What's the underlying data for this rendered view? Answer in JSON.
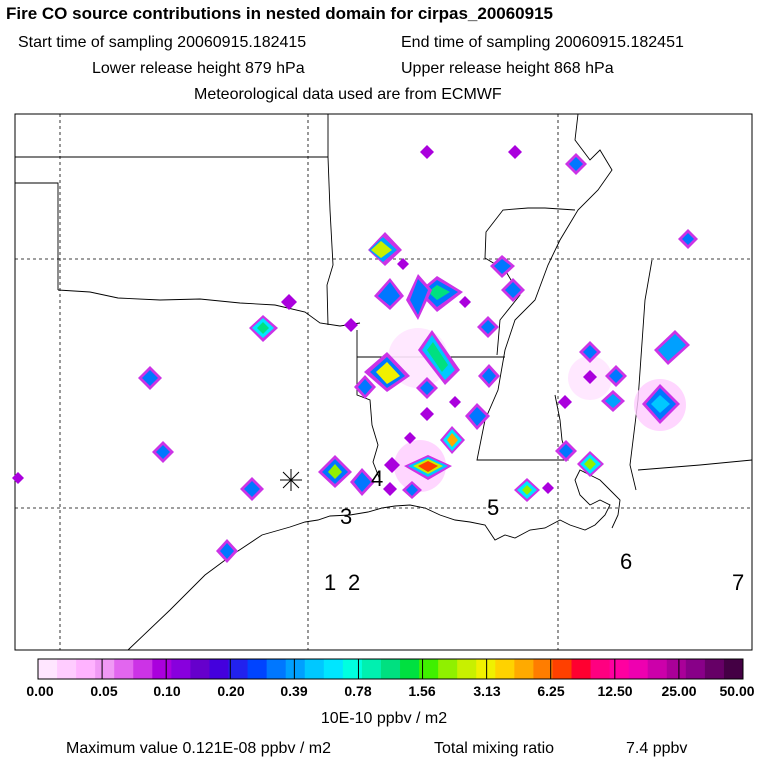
{
  "header": {
    "title": "Fire CO source contributions in nested domain for cirpas_20060915",
    "start_label": "Start time of sampling 20060915.182415",
    "end_label": "End time of sampling 20060915.182451",
    "lower_label": "Lower release height  879 hPa",
    "upper_label": "Upper release height  868 hPa",
    "met_label": "Meteorological data used are from ECMWF"
  },
  "map": {
    "site_labels": [
      "1",
      "2",
      "3",
      "4",
      "5",
      "6",
      "7"
    ],
    "release_marker": "release-asterisk"
  },
  "colorbar": {
    "colors": [
      "#ffe6ff",
      "#ffccff",
      "#ffb3ff",
      "#f099f5",
      "#e266ef",
      "#cc33e6",
      "#aa00dd",
      "#8800dd",
      "#6600cc",
      "#4400dd",
      "#2222ee",
      "#0044ff",
      "#0077ff",
      "#00a0ff",
      "#00c8ff",
      "#00e6ff",
      "#00ffe0",
      "#00f0b0",
      "#00e080",
      "#00e040",
      "#40f000",
      "#90f000",
      "#c8f000",
      "#f0f000",
      "#ffd200",
      "#ffaa00",
      "#ff7d00",
      "#ff4000",
      "#ff0030",
      "#ff0080",
      "#ff00a0",
      "#ee00b0",
      "#cc00aa",
      "#aa0099",
      "#880088",
      "#660066",
      "#440044"
    ],
    "tick_labels": [
      "0.00",
      "0.05",
      "0.10",
      "0.20",
      "0.39",
      "0.78",
      "1.56",
      "3.13",
      "6.25",
      "12.50",
      "25.00",
      "50.00"
    ],
    "unit_label": "10E-10 ppbv / m2"
  },
  "footer": {
    "max_value_label": "Maximum value  0.121E-08 ppbv / m2",
    "total_label": "Total mixing ratio",
    "total_value": "7.4 ppbv"
  },
  "chart_data": {
    "type": "heatmap",
    "title": "Fire CO source contributions in nested domain for cirpas_20060915",
    "colorbar_units": "10E-10 ppbv / m2",
    "colorbar_levels": [
      0.0,
      0.05,
      0.1,
      0.2,
      0.39,
      0.78,
      1.56,
      3.13,
      6.25,
      12.5,
      25.0,
      50.0
    ],
    "maximum_value_ppbv_per_m2": 1.21e-09,
    "total_mixing_ratio_ppbv": 7.4,
    "lower_release_height_hPa": 879,
    "upper_release_height_hPa": 868
  }
}
